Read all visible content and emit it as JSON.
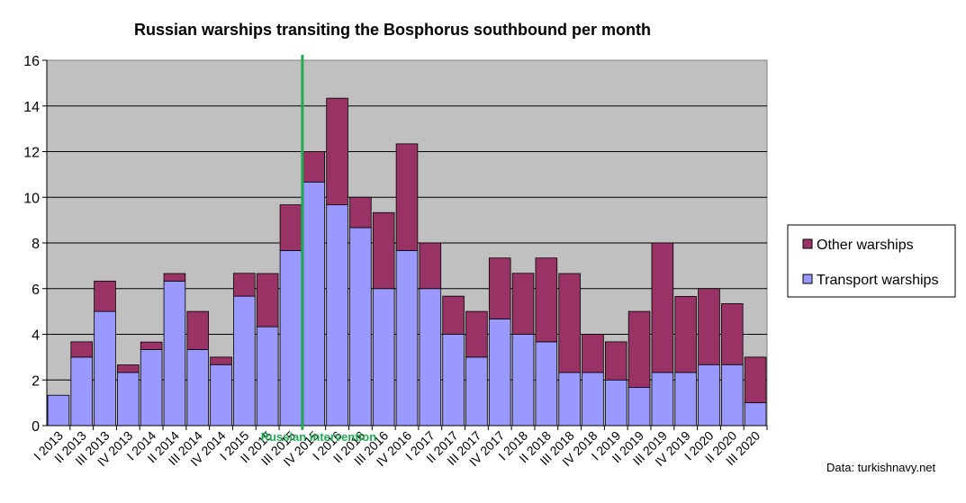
{
  "chart_data": {
    "type": "bar",
    "stacked": true,
    "title": "Russian warships transiting the Bosphorus southbound per month",
    "ylim": [
      0,
      16
    ],
    "yticks": [
      0,
      2,
      4,
      6,
      8,
      10,
      12,
      14,
      16
    ],
    "grid": true,
    "categories": [
      "I 2013",
      "II 2013",
      "III 2013",
      "IV 2013",
      "I 2014",
      "II 2014",
      "III 2014",
      "IV 2014",
      "I 2015",
      "II 2015",
      "III 2015",
      "IV 2015",
      "I 2016",
      "II 2016",
      "III 2016",
      "IV 2016",
      "I 2017",
      "II 2017",
      "III 2017",
      "IV 2017",
      "I 2018",
      "II 2018",
      "III 2018",
      "IV 2018",
      "I 2019",
      "II 2019",
      "III 2019",
      "IV 2019",
      "I 2020",
      "II 2020",
      "III 2020"
    ],
    "series": [
      {
        "name": "Transport warships",
        "color": "#9999ff",
        "values": [
          1.33,
          3.0,
          5.0,
          2.33,
          3.33,
          6.33,
          3.33,
          2.67,
          5.67,
          4.33,
          7.67,
          10.67,
          9.67,
          8.67,
          6.0,
          7.67,
          6.0,
          4.0,
          3.0,
          4.67,
          4.0,
          3.67,
          2.33,
          2.33,
          2.0,
          1.67,
          2.33,
          2.33,
          2.67,
          2.67,
          1.0
        ]
      },
      {
        "name": "Other warships",
        "color": "#993366",
        "values": [
          0,
          0.67,
          1.33,
          0.33,
          0.33,
          0.33,
          1.67,
          0.33,
          1.0,
          2.33,
          2.0,
          1.33,
          4.67,
          1.33,
          3.33,
          4.67,
          2.0,
          1.67,
          2.0,
          2.67,
          2.67,
          3.67,
          4.33,
          1.67,
          1.67,
          3.33,
          5.67,
          3.33,
          3.33,
          2.67,
          2.0
        ]
      }
    ],
    "legend_position": "right",
    "annotation": {
      "label": "Russian intervention",
      "color": "#22aa55",
      "position": "between III 2015 and IV 2015"
    },
    "source_text": "Data: turkishnavy.net"
  }
}
